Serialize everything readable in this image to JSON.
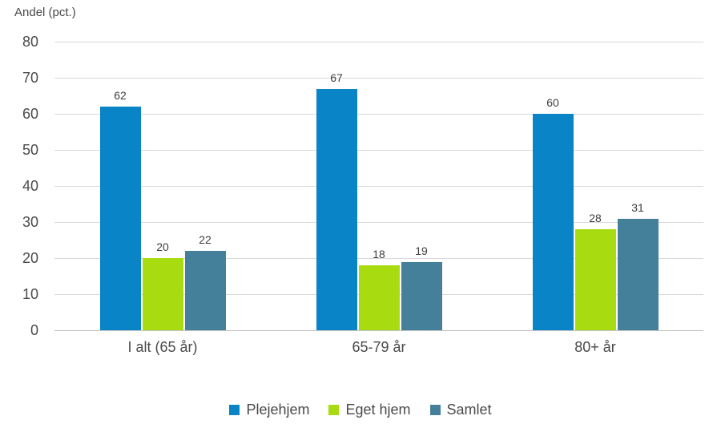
{
  "chart_data": {
    "type": "bar",
    "title": "Andel (pct.)",
    "categories": [
      "I alt (65 år)",
      "65-79 år",
      "80+ år"
    ],
    "series": [
      {
        "name": "Plejehjem",
        "color": "#0984c7",
        "values": [
          62,
          67,
          60
        ]
      },
      {
        "name": "Eget hjem",
        "color": "#a9dc10",
        "values": [
          20,
          18,
          28
        ]
      },
      {
        "name": "Samlet",
        "color": "#45809b",
        "values": [
          22,
          19,
          31
        ]
      }
    ],
    "ylabel": "Andel (pct.)",
    "xlabel": "",
    "ylim": [
      0,
      80
    ],
    "yticks": [
      0,
      10,
      20,
      30,
      40,
      50,
      60,
      70,
      80
    ],
    "grid": true,
    "legend_position": "bottom"
  },
  "colors": {
    "grid": "#d9d9d9",
    "axis": "#c2c2c2",
    "text": "#4a4a4a",
    "value_label": "#3d3d3d",
    "background": "#ffffff"
  }
}
